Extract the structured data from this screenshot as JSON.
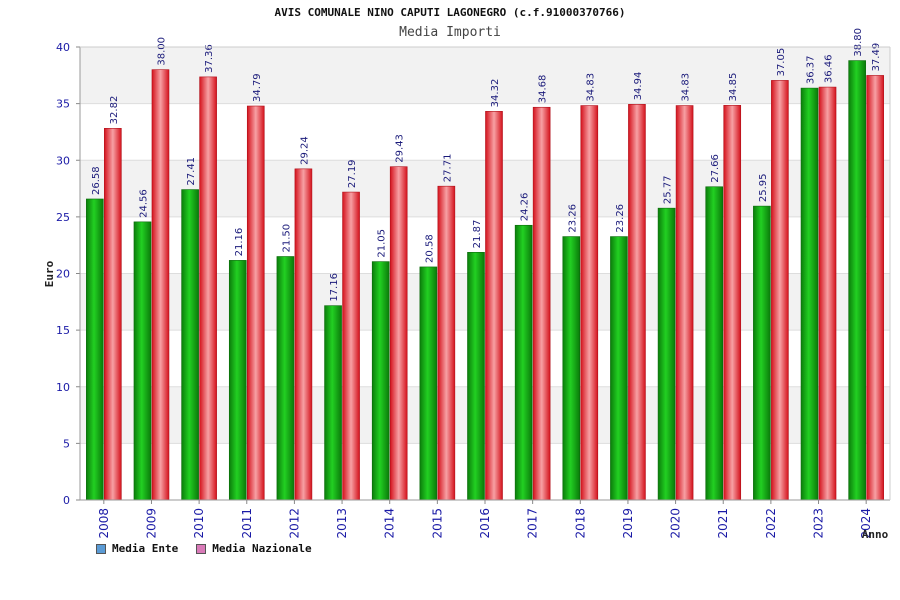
{
  "chart_data": {
    "type": "bar",
    "title": "AVIS COMUNALE NINO CAPUTI LAGONEGRO (c.f.91000370766)",
    "subtitle": "Media Importi",
    "xlabel": "Anno",
    "ylabel": "Euro",
    "ylim": [
      0,
      40
    ],
    "yticks": [
      0,
      5,
      10,
      15,
      20,
      25,
      30,
      35,
      40
    ],
    "grid": true,
    "legend_position": "bottom-left",
    "categories": [
      "2008",
      "2009",
      "2010",
      "2011",
      "2012",
      "2013",
      "2014",
      "2015",
      "2016",
      "2017",
      "2018",
      "2019",
      "2020",
      "2021",
      "2022",
      "2023",
      "2024"
    ],
    "series": [
      {
        "name": "Media Ente",
        "legend_color": "#5b9bd5",
        "color": "#11a811",
        "values": [
          26.58,
          24.56,
          27.41,
          21.16,
          21.5,
          17.16,
          21.05,
          20.58,
          21.87,
          24.26,
          23.26,
          23.26,
          25.77,
          27.66,
          25.95,
          36.37,
          38.8
        ]
      },
      {
        "name": "Media Nazionale",
        "legend_color": "#d97ab8",
        "color": "#e8202a",
        "values": [
          32.82,
          38.0,
          37.36,
          34.79,
          29.24,
          27.19,
          29.43,
          27.71,
          34.32,
          34.68,
          34.83,
          34.94,
          34.83,
          34.85,
          37.05,
          36.46,
          37.49
        ]
      }
    ]
  }
}
